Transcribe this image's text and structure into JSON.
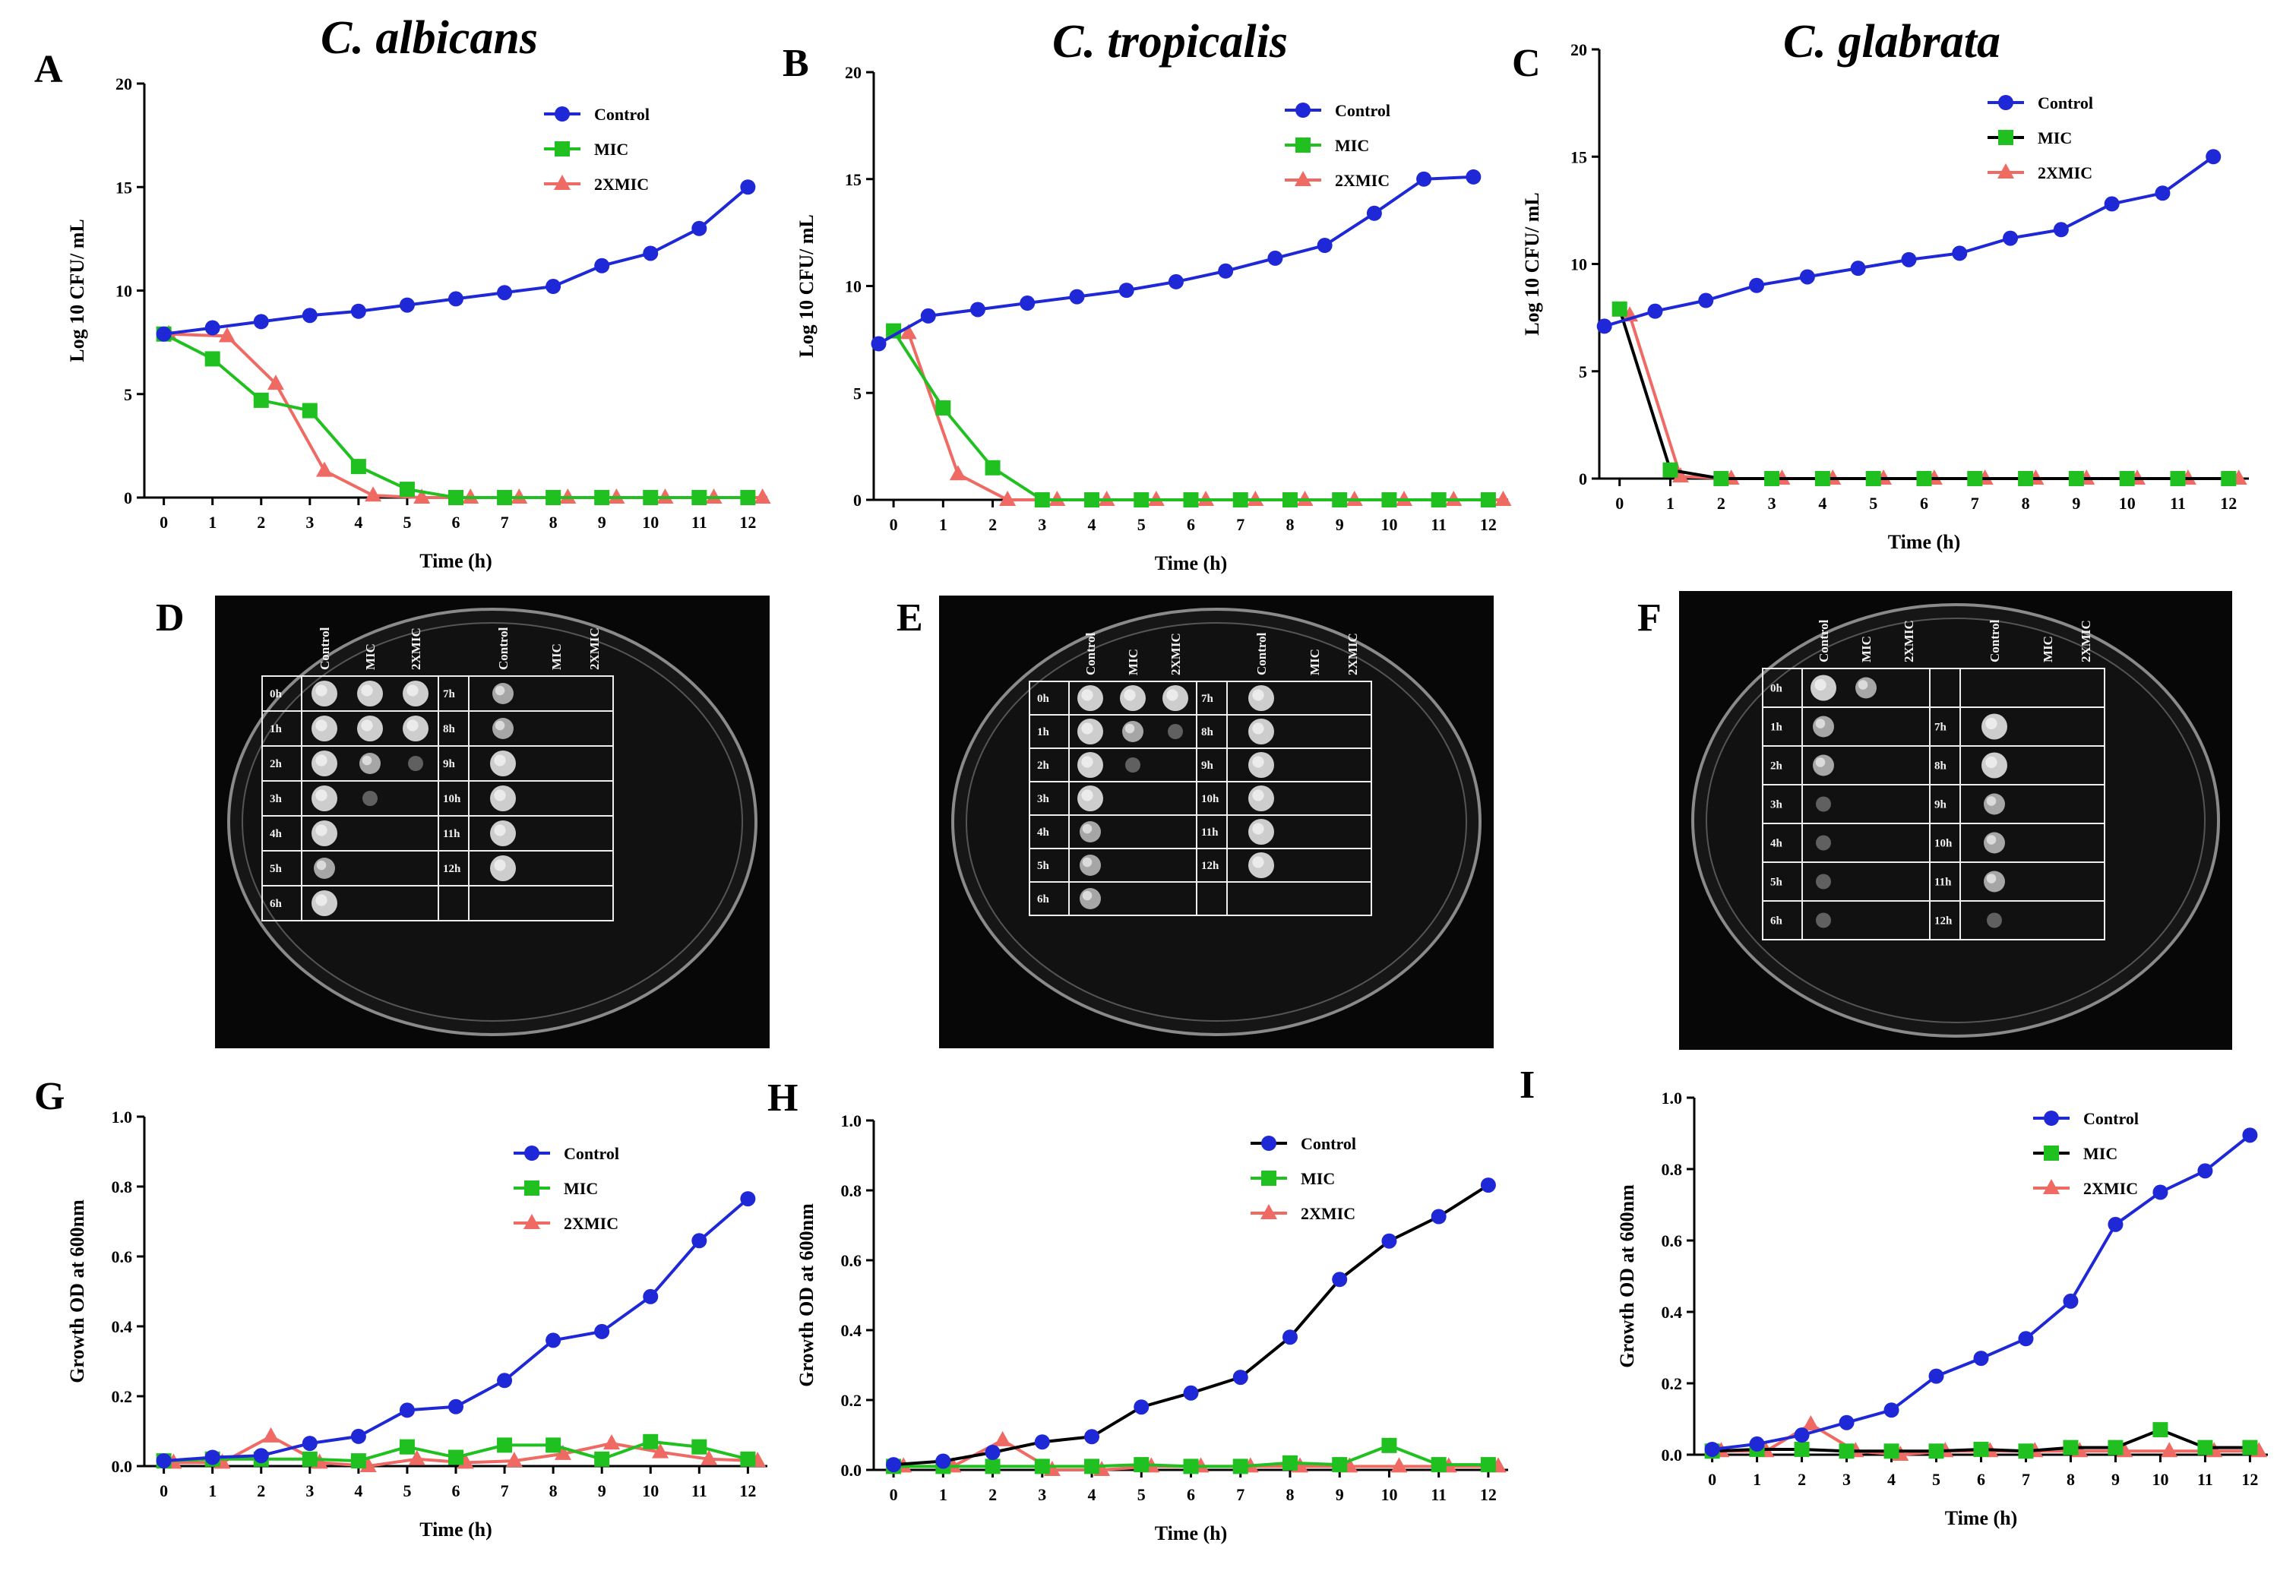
{
  "figure": {
    "letters": [
      "A",
      "B",
      "C",
      "D",
      "E",
      "F",
      "G",
      "H",
      "I"
    ],
    "plate_headers_right": [
      "Control",
      "MIC",
      "2XMIC"
    ],
    "plate_headers_left": [
      "Control",
      "MIC",
      "2XMIC"
    ]
  },
  "colors": {
    "control": "#1f28d6",
    "mic": "#20c020",
    "mic2x": "#f06a64",
    "axis": "#000000"
  },
  "plates": [
    {
      "letter": "D",
      "left_rows": [
        "0h",
        "1h",
        "2h",
        "3h",
        "4h",
        "5h",
        "6h"
      ],
      "right_rows": [
        "7h",
        "8h",
        "9h",
        "10h",
        "11h",
        "12h"
      ],
      "growth_left": [
        [
          3,
          3,
          3
        ],
        [
          3,
          3,
          3
        ],
        [
          3,
          2,
          1
        ],
        [
          3,
          1,
          0
        ],
        [
          3,
          0,
          0
        ],
        [
          2,
          0,
          0
        ],
        [
          3,
          0,
          0
        ]
      ],
      "growth_right": [
        [
          2
        ],
        [
          2
        ],
        [
          3
        ],
        [
          3
        ],
        [
          3
        ],
        [
          3
        ]
      ]
    },
    {
      "letter": "E",
      "left_rows": [
        "0h",
        "1h",
        "2h",
        "3h",
        "4h",
        "5h",
        "6h"
      ],
      "right_rows": [
        "7h",
        "8h",
        "9h",
        "10h",
        "11h",
        "12h"
      ],
      "growth_left": [
        [
          3,
          3,
          3
        ],
        [
          3,
          2,
          1
        ],
        [
          3,
          1,
          0
        ],
        [
          3,
          0,
          0
        ],
        [
          2,
          0,
          0
        ],
        [
          2,
          0,
          0
        ],
        [
          2,
          0,
          0
        ]
      ],
      "growth_right": [
        [
          3
        ],
        [
          3
        ],
        [
          3
        ],
        [
          3
        ],
        [
          3
        ],
        [
          3
        ]
      ]
    },
    {
      "letter": "F",
      "left_rows": [
        "0h",
        "1h",
        "2h",
        "3h",
        "4h",
        "5h",
        "6h"
      ],
      "right_rows": [
        "",
        "7h",
        "8h",
        "9h",
        "10h",
        "11h",
        "12h"
      ],
      "growth_left": [
        [
          3,
          2,
          0
        ],
        [
          2,
          0,
          0
        ],
        [
          2,
          0,
          0
        ],
        [
          1,
          0,
          0
        ],
        [
          1,
          0,
          0
        ],
        [
          1,
          0,
          0
        ],
        [
          1,
          0,
          0
        ]
      ],
      "growth_right": [
        [
          0
        ],
        [
          3
        ],
        [
          3
        ],
        [
          2
        ],
        [
          2
        ],
        [
          2
        ],
        [
          1
        ]
      ]
    }
  ],
  "chart_data": [
    {
      "id": "A",
      "type": "line",
      "title": "C. albicans",
      "xlabel": "Time (h)",
      "ylabel": "Log 10 CFU/ mL",
      "xlim": [
        -0.4,
        12.4
      ],
      "ylim": [
        0,
        20
      ],
      "xticks": [
        0,
        1,
        2,
        3,
        4,
        5,
        6,
        7,
        8,
        9,
        10,
        11,
        12
      ],
      "yticks": [
        0,
        5,
        10,
        15,
        20
      ],
      "legend": [
        "Control",
        "MIC",
        "2XMIC"
      ],
      "series": [
        {
          "name": "Control",
          "marker": "circle",
          "x": [
            0,
            1,
            2,
            3,
            4,
            5,
            6,
            7,
            8,
            9,
            10,
            11,
            12
          ],
          "y": [
            7.9,
            8.2,
            8.5,
            8.8,
            9.0,
            9.3,
            9.6,
            9.9,
            10.2,
            11.2,
            11.8,
            13.0,
            15.0
          ]
        },
        {
          "name": "MIC",
          "marker": "square",
          "x": [
            0,
            1,
            2,
            3,
            4,
            5,
            6,
            7,
            8,
            9,
            10,
            11,
            12
          ],
          "y": [
            7.9,
            6.7,
            4.7,
            4.2,
            1.5,
            0.4,
            0,
            0,
            0,
            0,
            0,
            0,
            0
          ]
        },
        {
          "name": "2XMIC",
          "marker": "triangle",
          "x": [
            0.1,
            1.3,
            2.3,
            3.3,
            4.3,
            5.3,
            6.3,
            7.3,
            8.3,
            9.3,
            10.3,
            11.3,
            12.3
          ],
          "y": [
            7.9,
            7.8,
            5.5,
            1.3,
            0.1,
            0,
            0,
            0,
            0,
            0,
            0,
            0,
            0
          ]
        }
      ]
    },
    {
      "id": "B",
      "type": "line",
      "title": "C. tropicalis",
      "xlabel": "Time (h)",
      "ylabel": "Log 10 CFU/ mL",
      "xlim": [
        -0.4,
        12.4
      ],
      "ylim": [
        0,
        20
      ],
      "xticks": [
        0,
        1,
        2,
        3,
        4,
        5,
        6,
        7,
        8,
        9,
        10,
        11,
        12
      ],
      "yticks": [
        0,
        5,
        10,
        15,
        20
      ],
      "legend": [
        "Control",
        "MIC",
        "2XMIC"
      ],
      "series": [
        {
          "name": "Control",
          "marker": "circle",
          "x": [
            -0.3,
            0.7,
            1.7,
            2.7,
            3.7,
            4.7,
            5.7,
            6.7,
            7.7,
            8.7,
            9.7,
            10.7,
            11.7
          ],
          "y": [
            7.3,
            8.6,
            8.9,
            9.2,
            9.5,
            9.8,
            10.2,
            10.7,
            11.3,
            11.9,
            13.4,
            15.0,
            15.1
          ]
        },
        {
          "name": "MIC",
          "marker": "square",
          "x": [
            0,
            1,
            2,
            3,
            4,
            5,
            6,
            7,
            8,
            9,
            10,
            11,
            12
          ],
          "y": [
            7.9,
            4.3,
            1.5,
            0,
            0,
            0,
            0,
            0,
            0,
            0,
            0,
            0,
            0
          ]
        },
        {
          "name": "2XMIC",
          "marker": "triangle",
          "x": [
            0.3,
            1.3,
            2.3,
            3.3,
            4.3,
            5.3,
            6.3,
            7.3,
            8.3,
            9.3,
            10.3,
            11.3,
            12.3
          ],
          "y": [
            7.8,
            1.2,
            0,
            0,
            0,
            0,
            0,
            0,
            0,
            0,
            0,
            0,
            0
          ]
        }
      ]
    },
    {
      "id": "C",
      "type": "line",
      "title": "C. glabrata",
      "xlabel": "Time (h)",
      "ylabel": "Log 10 CFU/ mL",
      "xlim": [
        -0.4,
        12.4
      ],
      "ylim": [
        0,
        20
      ],
      "xticks": [
        0,
        1,
        2,
        3,
        4,
        5,
        6,
        7,
        8,
        9,
        10,
        11,
        12
      ],
      "yticks": [
        0,
        5,
        10,
        15,
        20
      ],
      "legend": [
        "Control",
        "MIC",
        "2XMIC"
      ],
      "series": [
        {
          "name": "Control",
          "marker": "circle",
          "x": [
            -0.3,
            0.7,
            1.7,
            2.7,
            3.7,
            4.7,
            5.7,
            6.7,
            7.7,
            8.7,
            9.7,
            10.7,
            11.7
          ],
          "y": [
            7.1,
            7.8,
            8.3,
            9.0,
            9.4,
            9.8,
            10.2,
            10.5,
            11.2,
            11.6,
            12.8,
            13.3,
            15.0
          ]
        },
        {
          "name": "MIC",
          "marker": "square",
          "x": [
            0,
            1,
            2,
            3,
            4,
            5,
            6,
            7,
            8,
            9,
            10,
            11,
            12
          ],
          "y": [
            7.9,
            0.4,
            0,
            0,
            0,
            0,
            0,
            0,
            0,
            0,
            0,
            0,
            0
          ]
        },
        {
          "name": "2XMIC",
          "marker": "triangle",
          "x": [
            0.2,
            1.2,
            2.2,
            3.2,
            4.2,
            5.2,
            6.2,
            7.2,
            8.2,
            9.2,
            10.2,
            11.2,
            12.2
          ],
          "y": [
            7.6,
            0.1,
            0,
            0,
            0,
            0,
            0,
            0,
            0,
            0,
            0,
            0,
            0
          ]
        }
      ]
    },
    {
      "id": "G",
      "type": "line",
      "title": "",
      "xlabel": "Time (h)",
      "ylabel": "Growth OD at 600nm",
      "xlim": [
        -0.4,
        12.4
      ],
      "ylim": [
        0,
        1.0
      ],
      "xticks": [
        0,
        1,
        2,
        3,
        4,
        5,
        6,
        7,
        8,
        9,
        10,
        11,
        12
      ],
      "yticks": [
        0.0,
        0.2,
        0.4,
        0.6,
        0.8,
        1.0
      ],
      "legend": [
        "Control",
        "MIC",
        "2XMIC"
      ],
      "series": [
        {
          "name": "Control",
          "marker": "circle",
          "x": [
            0,
            1,
            2,
            3,
            4,
            5,
            6,
            7,
            8,
            9,
            10,
            11,
            12
          ],
          "y": [
            0.015,
            0.025,
            0.03,
            0.065,
            0.085,
            0.16,
            0.17,
            0.245,
            0.36,
            0.385,
            0.485,
            0.645,
            0.765
          ]
        },
        {
          "name": "MIC",
          "marker": "square",
          "x": [
            0,
            1,
            2,
            3,
            4,
            5,
            6,
            7,
            8,
            9,
            10,
            11,
            12
          ],
          "y": [
            0.015,
            0.02,
            0.02,
            0.02,
            0.015,
            0.055,
            0.025,
            0.06,
            0.06,
            0.02,
            0.07,
            0.055,
            0.02
          ]
        },
        {
          "name": "2XMIC",
          "marker": "triangle",
          "x": [
            0.2,
            1.2,
            2.2,
            3.2,
            4.2,
            5.2,
            6.2,
            7.2,
            8.2,
            9.2,
            10.2,
            11.2,
            12.2
          ],
          "y": [
            0.01,
            0.01,
            0.085,
            0.01,
            0.0,
            0.02,
            0.01,
            0.015,
            0.035,
            0.065,
            0.04,
            0.02,
            0.015
          ]
        }
      ]
    },
    {
      "id": "H",
      "type": "line",
      "title": "",
      "xlabel": "Time (h)",
      "ylabel": "Growth OD at 600nm",
      "xlim": [
        -0.4,
        12.4
      ],
      "ylim": [
        0,
        1.0
      ],
      "xticks": [
        0,
        1,
        2,
        3,
        4,
        5,
        6,
        7,
        8,
        9,
        10,
        11,
        12
      ],
      "yticks": [
        0.0,
        0.2,
        0.4,
        0.6,
        0.8,
        1.0
      ],
      "legend": [
        "Control",
        "MIC",
        "2XMIC"
      ],
      "series": [
        {
          "name": "Control",
          "marker": "circle",
          "x": [
            0,
            1,
            2,
            3,
            4,
            5,
            6,
            7,
            8,
            9,
            10,
            11,
            12
          ],
          "y": [
            0.015,
            0.025,
            0.05,
            0.08,
            0.095,
            0.18,
            0.22,
            0.265,
            0.38,
            0.545,
            0.655,
            0.725,
            0.815
          ]
        },
        {
          "name": "MIC",
          "marker": "square",
          "x": [
            0,
            1,
            2,
            3,
            4,
            5,
            6,
            7,
            8,
            9,
            10,
            11,
            12
          ],
          "y": [
            0.01,
            0.01,
            0.01,
            0.01,
            0.01,
            0.015,
            0.01,
            0.01,
            0.02,
            0.015,
            0.07,
            0.015,
            0.015
          ]
        },
        {
          "name": "2XMIC",
          "marker": "triangle",
          "x": [
            0.2,
            1.2,
            2.2,
            3.2,
            4.2,
            5.2,
            6.2,
            7.2,
            8.2,
            9.2,
            10.2,
            11.2,
            12.2
          ],
          "y": [
            0.01,
            0.01,
            0.085,
            0.0,
            0.0,
            0.01,
            0.01,
            0.01,
            0.01,
            0.01,
            0.01,
            0.01,
            0.01
          ]
        }
      ]
    },
    {
      "id": "I",
      "type": "line",
      "title": "",
      "xlabel": "Time (h)",
      "ylabel": "Growth OD at 600nm",
      "xlim": [
        -0.4,
        12.4
      ],
      "ylim": [
        0,
        1.0
      ],
      "xticks": [
        0,
        1,
        2,
        3,
        4,
        5,
        6,
        7,
        8,
        9,
        10,
        11,
        12
      ],
      "yticks": [
        0.0,
        0.2,
        0.4,
        0.6,
        0.8,
        1.0
      ],
      "legend": [
        "Control",
        "MIC",
        "2XMIC"
      ],
      "series": [
        {
          "name": "Control",
          "marker": "circle",
          "x": [
            0,
            1,
            2,
            3,
            4,
            5,
            6,
            7,
            8,
            9,
            10,
            11,
            12
          ],
          "y": [
            0.015,
            0.03,
            0.055,
            0.09,
            0.125,
            0.22,
            0.27,
            0.325,
            0.43,
            0.645,
            0.735,
            0.795,
            0.895
          ]
        },
        {
          "name": "MIC",
          "marker": "square",
          "x": [
            0,
            1,
            2,
            3,
            4,
            5,
            6,
            7,
            8,
            9,
            10,
            11,
            12
          ],
          "y": [
            0.01,
            0.015,
            0.015,
            0.01,
            0.01,
            0.01,
            0.015,
            0.01,
            0.02,
            0.02,
            0.07,
            0.02,
            0.02
          ]
        },
        {
          "name": "2XMIC",
          "marker": "triangle",
          "x": [
            0.2,
            1.2,
            2.2,
            3.2,
            4.2,
            5.2,
            6.2,
            7.2,
            8.2,
            9.2,
            10.2,
            11.2,
            12.2
          ],
          "y": [
            0.01,
            0.01,
            0.085,
            0.01,
            0.0,
            0.01,
            0.01,
            0.01,
            0.01,
            0.01,
            0.01,
            0.01,
            0.01
          ]
        }
      ]
    }
  ]
}
